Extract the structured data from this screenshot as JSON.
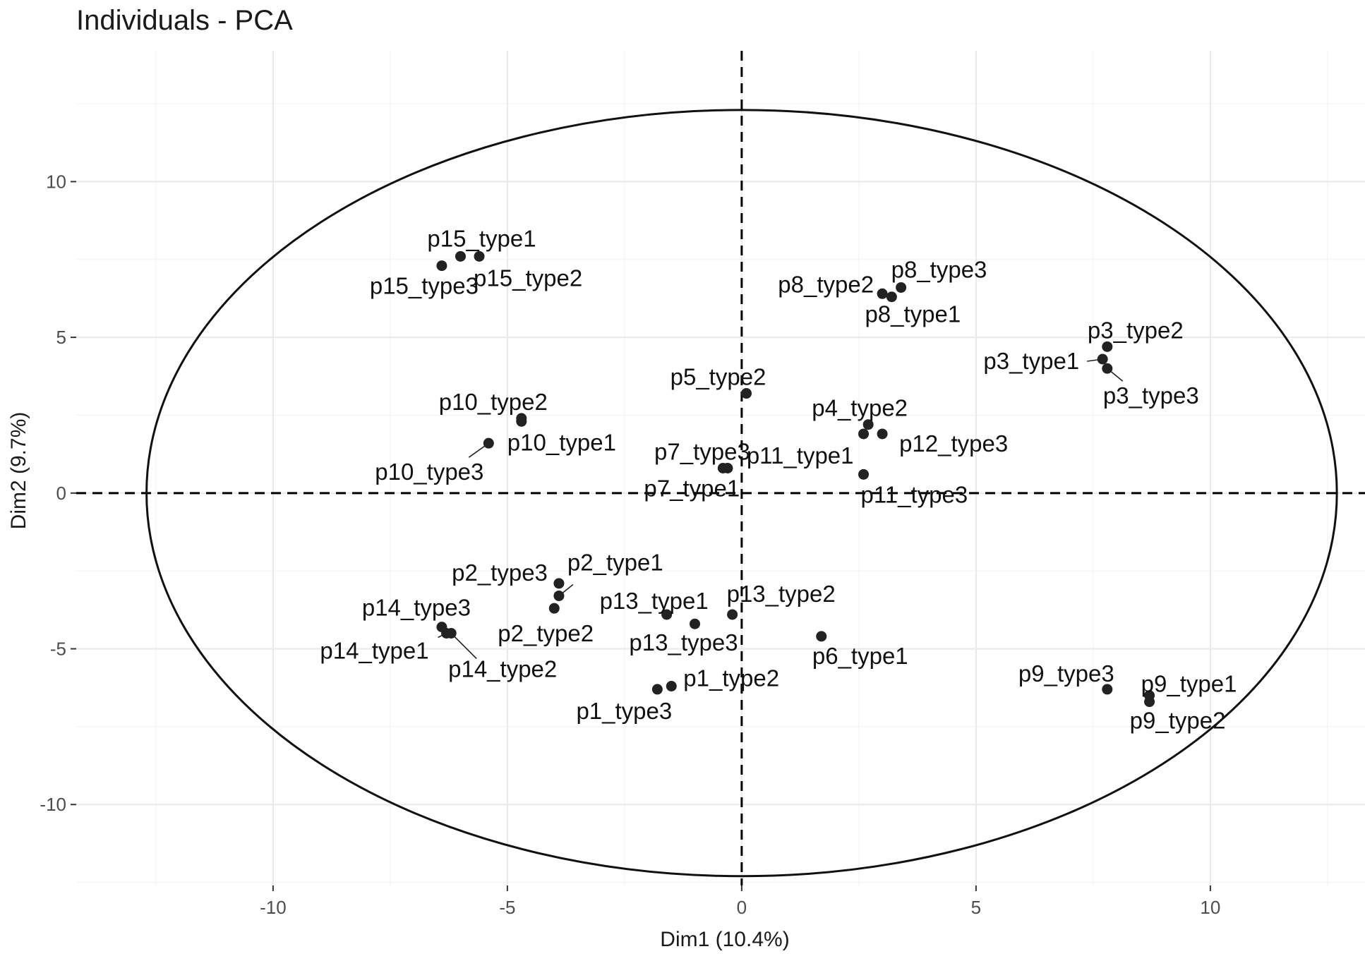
{
  "chart_data": {
    "type": "scatter",
    "title": "Individuals - PCA",
    "xlabel": "Dim1 (10.4%)",
    "ylabel": "Dim2 (9.7%)",
    "xlim": [
      -14.2,
      13.3
    ],
    "ylim": [
      -12.6,
      14.2
    ],
    "x_ticks": [
      -10,
      -5,
      0,
      5,
      10
    ],
    "y_ticks": [
      -10,
      -5,
      0,
      5,
      10
    ],
    "grid": true,
    "reference_lines": {
      "x": 0,
      "y": 0,
      "style": "dashed"
    },
    "ellipse": {
      "center": [
        0,
        0
      ],
      "rx": 12.7,
      "ry": 12.3
    },
    "points": [
      {
        "label": "p15_type1",
        "x": -6.0,
        "y": 7.6
      },
      {
        "label": "p15_type2",
        "x": -5.6,
        "y": 7.6
      },
      {
        "label": "p15_type3",
        "x": -6.4,
        "y": 7.3
      },
      {
        "label": "p8_type2",
        "x": 3.0,
        "y": 6.4
      },
      {
        "label": "p8_type3",
        "x": 3.4,
        "y": 6.6
      },
      {
        "label": "p8_type1",
        "x": 3.2,
        "y": 6.3
      },
      {
        "label": "p3_type2",
        "x": 7.8,
        "y": 4.7
      },
      {
        "label": "p3_type1",
        "x": 7.7,
        "y": 4.3
      },
      {
        "label": "p3_type3",
        "x": 7.8,
        "y": 4.0
      },
      {
        "label": "p5_type2",
        "x": 0.1,
        "y": 3.2
      },
      {
        "label": "p10_type2",
        "x": -4.7,
        "y": 2.4
      },
      {
        "label": "p10_type1",
        "x": -4.7,
        "y": 2.3
      },
      {
        "label": "p10_type3",
        "x": -5.4,
        "y": 1.6
      },
      {
        "label": "p4_type2",
        "x": 2.7,
        "y": 2.2
      },
      {
        "label": "p11_type1",
        "x": 2.6,
        "y": 1.9
      },
      {
        "label": "p12_type3",
        "x": 3.0,
        "y": 1.9
      },
      {
        "label": "p11_type3",
        "x": 2.6,
        "y": 0.6
      },
      {
        "label": "p7_type3",
        "x": -0.3,
        "y": 0.8
      },
      {
        "label": "p7_type1",
        "x": -0.4,
        "y": 0.8
      },
      {
        "label": "p2_type1",
        "x": -3.9,
        "y": -3.3
      },
      {
        "label": "p2_type3",
        "x": -3.9,
        "y": -2.9
      },
      {
        "label": "p2_type2",
        "x": -4.0,
        "y": -3.7
      },
      {
        "label": "p14_type3",
        "x": -6.4,
        "y": -4.3
      },
      {
        "label": "p14_type1",
        "x": -6.3,
        "y": -4.5
      },
      {
        "label": "p14_type2",
        "x": -6.2,
        "y": -4.5
      },
      {
        "label": "p13_type1",
        "x": -1.6,
        "y": -3.9
      },
      {
        "label": "p13_type2",
        "x": -0.2,
        "y": -3.9
      },
      {
        "label": "p13_type3",
        "x": -1.0,
        "y": -4.2
      },
      {
        "label": "p6_type1",
        "x": 1.7,
        "y": -4.6
      },
      {
        "label": "p1_type2",
        "x": -1.5,
        "y": -6.2
      },
      {
        "label": "p1_type3",
        "x": -1.8,
        "y": -6.3
      },
      {
        "label": "p9_type3",
        "x": 7.8,
        "y": -6.3
      },
      {
        "label": "p9_type1",
        "x": 8.7,
        "y": -6.5
      },
      {
        "label": "p9_type2",
        "x": 8.7,
        "y": -6.7
      }
    ]
  }
}
